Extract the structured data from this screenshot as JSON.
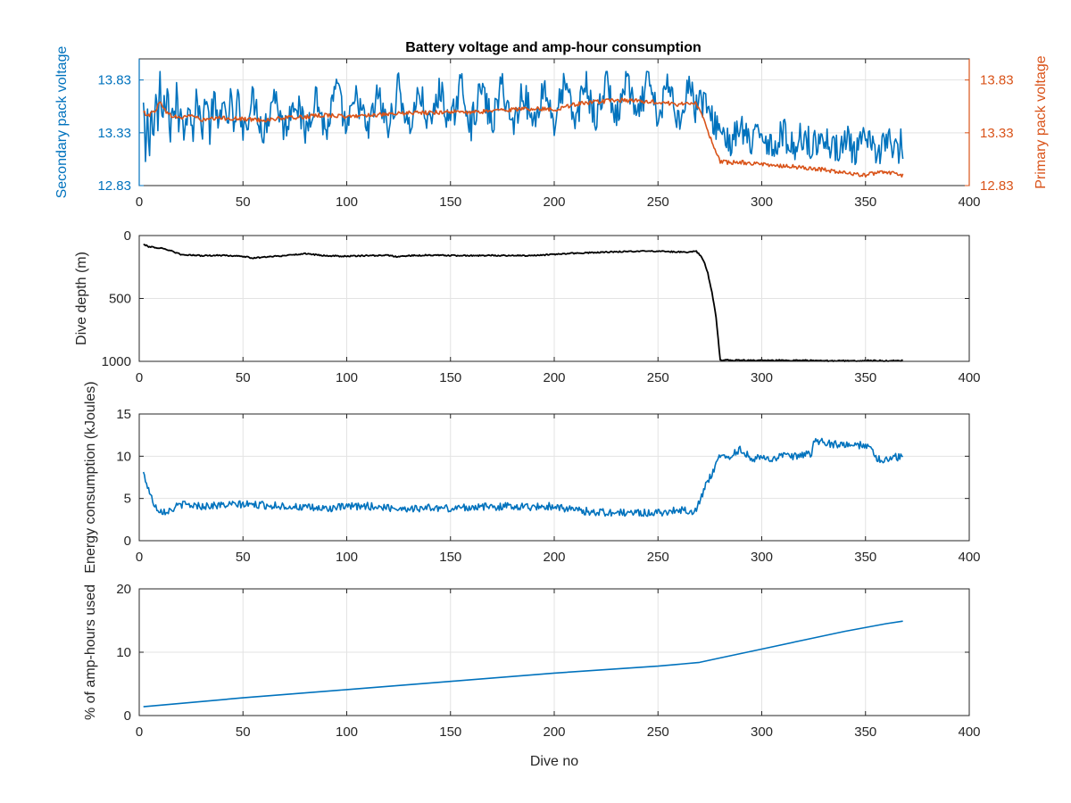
{
  "figure_title": "Battery voltage and amp-hour consumption",
  "colors": {
    "secondary": "#0072BD",
    "primary": "#D95319",
    "depth": "#000000",
    "energy": "#0072BD",
    "amphours": "#0072BD",
    "grid": "#e3e3e3",
    "axis": "#262626"
  },
  "chart_data": [
    {
      "type": "line",
      "title": "Battery voltage and amp-hour consumption",
      "xlabel": "",
      "xlim": [
        0,
        400
      ],
      "xticks": [
        "0",
        "50",
        "100",
        "150",
        "200",
        "250",
        "300",
        "350",
        "400"
      ],
      "ylabel": "Secondary pack voltage",
      "ylim": [
        12.83,
        14.03
      ],
      "yticks": [
        "12.83",
        "13.33",
        "13.83"
      ],
      "y2label": "Primary pack voltage",
      "y2lim": [
        12.83,
        14.03
      ],
      "y2ticks": [
        "12.83",
        "13.33",
        "13.83"
      ],
      "grid": true,
      "series": [
        {
          "axis": "left",
          "color": "#0072BD",
          "x": [
            2,
            3,
            4,
            5,
            6,
            7,
            8,
            9,
            10,
            11,
            12,
            13,
            14,
            15,
            16,
            17,
            18,
            19,
            20,
            22,
            24,
            26,
            28,
            30,
            32,
            34,
            36,
            38,
            40,
            42,
            44,
            46,
            48,
            50,
            55,
            60,
            65,
            70,
            75,
            80,
            85,
            90,
            95,
            100,
            105,
            110,
            115,
            120,
            125,
            130,
            135,
            140,
            145,
            150,
            155,
            160,
            165,
            170,
            175,
            180,
            185,
            190,
            195,
            200,
            205,
            210,
            215,
            220,
            225,
            230,
            235,
            240,
            245,
            250,
            255,
            260,
            265,
            268,
            270,
            272,
            274,
            276,
            278,
            280,
            285,
            290,
            295,
            300,
            305,
            310,
            315,
            320,
            325,
            330,
            335,
            340,
            345,
            350,
            355,
            360,
            365,
            367,
            368
          ],
          "y": [
            13.58,
            13.05,
            13.45,
            13.15,
            13.62,
            13.3,
            13.7,
            13.4,
            13.82,
            13.35,
            13.65,
            13.5,
            13.72,
            13.3,
            13.62,
            13.4,
            13.75,
            13.38,
            13.65,
            13.3,
            13.7,
            13.35,
            13.68,
            13.32,
            13.7,
            13.35,
            13.66,
            13.33,
            13.7,
            13.35,
            13.66,
            13.33,
            13.7,
            13.35,
            13.66,
            13.33,
            13.72,
            13.35,
            13.68,
            13.33,
            13.7,
            13.32,
            13.76,
            13.35,
            13.68,
            13.33,
            13.7,
            13.35,
            13.78,
            13.36,
            13.72,
            13.38,
            13.75,
            13.38,
            13.8,
            13.4,
            13.76,
            13.4,
            13.8,
            13.38,
            13.74,
            13.4,
            13.78,
            13.42,
            13.8,
            13.42,
            13.82,
            13.42,
            13.84,
            13.44,
            13.86,
            13.42,
            13.84,
            13.45,
            13.8,
            13.44,
            13.82,
            13.55,
            13.7,
            13.6,
            13.55,
            13.45,
            13.4,
            13.38,
            13.22,
            13.38,
            13.2,
            13.36,
            13.18,
            13.34,
            13.18,
            13.32,
            13.2,
            13.3,
            13.15,
            13.3,
            13.12,
            13.28,
            13.1,
            13.3,
            13.12,
            13.25,
            13.05
          ],
          "noise_amplitude": 0.15
        },
        {
          "axis": "right",
          "color": "#D95319",
          "x": [
            2,
            5,
            8,
            10,
            12,
            14,
            20,
            25,
            30,
            40,
            50,
            60,
            70,
            80,
            90,
            100,
            110,
            120,
            130,
            140,
            150,
            160,
            170,
            180,
            190,
            200,
            210,
            220,
            230,
            240,
            250,
            260,
            265,
            268,
            270,
            272,
            274,
            276,
            278,
            280,
            290,
            300,
            310,
            320,
            330,
            340,
            350,
            360,
            365,
            368
          ],
          "y": [
            13.52,
            13.5,
            13.55,
            13.62,
            13.57,
            13.5,
            13.47,
            13.5,
            13.45,
            13.47,
            13.46,
            13.45,
            13.47,
            13.48,
            13.5,
            13.48,
            13.5,
            13.5,
            13.52,
            13.52,
            13.53,
            13.52,
            13.54,
            13.55,
            13.56,
            13.55,
            13.6,
            13.62,
            13.64,
            13.63,
            13.62,
            13.6,
            13.6,
            13.62,
            13.55,
            13.45,
            13.35,
            13.25,
            13.15,
            13.05,
            13.05,
            13.03,
            13.02,
            13.0,
            12.98,
            12.95,
            12.93,
            12.96,
            12.94,
            12.93
          ],
          "noise_amplitude": 0.02
        }
      ]
    },
    {
      "type": "line",
      "title": "",
      "xlabel": "",
      "xlim": [
        0,
        400
      ],
      "xticks": [
        "0",
        "50",
        "100",
        "150",
        "200",
        "250",
        "300",
        "350",
        "400"
      ],
      "ylabel": "Dive depth (m)",
      "ylim": [
        0,
        1000
      ],
      "yreverse": true,
      "yticks": [
        "0",
        "500",
        "1000"
      ],
      "grid": true,
      "series": [
        {
          "color": "#000000",
          "x": [
            2,
            5,
            8,
            10,
            15,
            20,
            25,
            30,
            40,
            50,
            55,
            60,
            70,
            80,
            90,
            100,
            110,
            120,
            125,
            130,
            140,
            150,
            160,
            170,
            180,
            190,
            200,
            210,
            220,
            230,
            240,
            250,
            255,
            260,
            265,
            268,
            270,
            272,
            274,
            276,
            278,
            280,
            290,
            300,
            310,
            320,
            330,
            340,
            350,
            360,
            368
          ],
          "y": [
            70,
            90,
            95,
            100,
            120,
            150,
            155,
            160,
            158,
            165,
            180,
            170,
            160,
            145,
            160,
            165,
            160,
            158,
            170,
            160,
            155,
            158,
            160,
            158,
            160,
            158,
            150,
            140,
            135,
            128,
            125,
            125,
            128,
            130,
            132,
            120,
            150,
            200,
            300,
            450,
            650,
            990,
            992,
            993,
            992,
            993,
            995,
            996,
            994,
            995,
            994
          ],
          "noise_amplitude": 5
        }
      ]
    },
    {
      "type": "line",
      "title": "",
      "xlabel": "",
      "xlim": [
        0,
        400
      ],
      "xticks": [
        "0",
        "50",
        "100",
        "150",
        "200",
        "250",
        "300",
        "350",
        "400"
      ],
      "ylabel": "Energy consumption (kJoules)",
      "ylim": [
        0,
        15
      ],
      "yticks": [
        "0",
        "5",
        "10",
        "15"
      ],
      "grid": true,
      "series": [
        {
          "color": "#0072BD",
          "x": [
            2,
            4,
            6,
            8,
            10,
            12,
            15,
            20,
            25,
            30,
            40,
            50,
            60,
            70,
            80,
            90,
            100,
            110,
            120,
            130,
            140,
            150,
            160,
            170,
            180,
            190,
            200,
            210,
            220,
            230,
            240,
            248,
            250,
            255,
            260,
            265,
            268,
            270,
            272,
            275,
            278,
            280,
            283,
            285,
            288,
            290,
            295,
            300,
            305,
            310,
            315,
            320,
            324,
            325,
            327,
            330,
            335,
            340,
            345,
            350,
            352,
            355,
            360,
            365,
            368
          ],
          "y": [
            8,
            6.5,
            5,
            4,
            3.6,
            3.5,
            3.6,
            4.3,
            4.2,
            4.1,
            4.2,
            4.3,
            4.2,
            4.1,
            3.9,
            3.8,
            4.0,
            4.1,
            3.9,
            3.8,
            3.9,
            3.8,
            4.0,
            4.0,
            4.1,
            4.0,
            4.1,
            3.6,
            3.4,
            3.3,
            3.3,
            3.3,
            3.3,
            3.5,
            3.6,
            3.6,
            3.5,
            4.5,
            6.0,
            7.5,
            9.0,
            10.0,
            10.2,
            9.8,
            10.6,
            10.8,
            9.8,
            9.7,
            9.8,
            10.0,
            9.9,
            10.1,
            10.3,
            11.5,
            11.8,
            11.6,
            11.4,
            11.3,
            11.2,
            11.4,
            11.0,
            9.8,
            9.6,
            9.9,
            9.8
          ],
          "noise_amplitude": 0.45
        }
      ]
    },
    {
      "type": "line",
      "title": "",
      "xlabel": "Dive no",
      "xlim": [
        0,
        400
      ],
      "xticks": [
        "0",
        "50",
        "100",
        "150",
        "200",
        "250",
        "300",
        "350",
        "400"
      ],
      "ylabel": "% of amp-hours used",
      "ylim": [
        0,
        20
      ],
      "yticks": [
        "0",
        "10",
        "20"
      ],
      "grid": true,
      "series": [
        {
          "color": "#0072BD",
          "x": [
            2,
            50,
            100,
            150,
            200,
            250,
            270,
            280,
            300,
            320,
            340,
            360,
            368
          ],
          "y": [
            1.4,
            2.8,
            4.1,
            5.4,
            6.7,
            7.8,
            8.4,
            9.1,
            10.5,
            11.9,
            13.3,
            14.5,
            14.9
          ],
          "noise_amplitude": 0
        }
      ]
    }
  ]
}
